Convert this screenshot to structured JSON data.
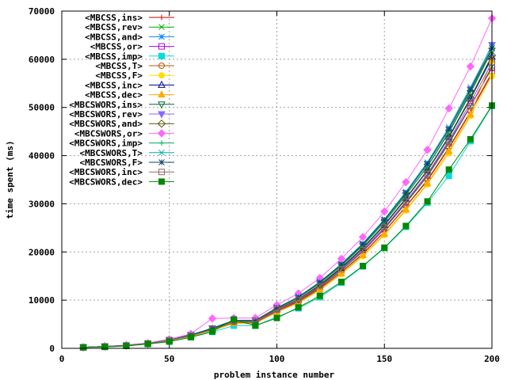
{
  "chart_data": {
    "type": "line",
    "title": "",
    "xlabel": "problem instance number",
    "ylabel": "time spent (ms)",
    "xlim": [
      0,
      200
    ],
    "ylim": [
      0,
      70000
    ],
    "xticks": [
      0,
      50,
      100,
      150,
      200
    ],
    "yticks": [
      0,
      10000,
      20000,
      30000,
      40000,
      50000,
      60000,
      70000
    ],
    "grid": true,
    "legend_position": "top-left",
    "x": [
      10,
      20,
      30,
      40,
      50,
      60,
      70,
      80,
      90,
      100,
      110,
      120,
      130,
      140,
      150,
      160,
      170,
      180,
      190,
      200
    ],
    "series": [
      {
        "name": "<MBCSS,ins>",
        "color": "#cc0000",
        "marker": "plus",
        "values": [
          200,
          400,
          600,
          1000,
          1700,
          2600,
          3800,
          5400,
          5300,
          7700,
          9600,
          12400,
          15800,
          19600,
          24200,
          29400,
          34800,
          41500,
          49000,
          57000
        ]
      },
      {
        "name": "<MBCSS,rev>",
        "color": "#00aa00",
        "marker": "x",
        "values": [
          200,
          400,
          600,
          1000,
          1700,
          2600,
          3900,
          5500,
          5400,
          7800,
          9800,
          12700,
          16200,
          20100,
          24800,
          30100,
          35700,
          42500,
          50200,
          58500
        ]
      },
      {
        "name": "<MBCSS,and>",
        "color": "#0088ff",
        "marker": "star",
        "values": [
          200,
          400,
          600,
          1000,
          1700,
          2700,
          4000,
          5500,
          5500,
          8000,
          10100,
          13000,
          16600,
          20700,
          25500,
          31000,
          36800,
          43700,
          51800,
          60200
        ]
      },
      {
        "name": "<MBCSS,or>",
        "color": "#aa00ff",
        "marker": "square-open",
        "values": [
          200,
          400,
          600,
          1000,
          1700,
          2600,
          3900,
          5400,
          5400,
          7900,
          9900,
          12800,
          16300,
          20200,
          24900,
          30300,
          35900,
          42800,
          50300,
          58200
        ]
      },
      {
        "name": "<MBCSS,imp>",
        "color": "#00dddd",
        "marker": "square",
        "values": [
          200,
          300,
          500,
          900,
          1400,
          2300,
          3400,
          4700,
          4700,
          6500,
          8300,
          10600,
          13600,
          17000,
          20800,
          25200,
          30200,
          35800,
          43000,
          50300
        ]
      },
      {
        "name": "<MBCSS,T>",
        "color": "#bb5500",
        "marker": "circle-open",
        "values": [
          200,
          400,
          600,
          1000,
          1700,
          2600,
          3800,
          5400,
          5300,
          7700,
          9700,
          12500,
          15900,
          19700,
          24300,
          29500,
          35000,
          41700,
          49200,
          57300
        ]
      },
      {
        "name": "<MBCSS,F>",
        "color": "#ffdd00",
        "marker": "circle",
        "values": [
          200,
          400,
          600,
          1000,
          1600,
          2500,
          3700,
          5200,
          5200,
          7500,
          9400,
          12100,
          15400,
          19100,
          23500,
          28600,
          34000,
          40500,
          48200,
          56500
        ]
      },
      {
        "name": "<MBCSS,inc>",
        "color": "#000099",
        "marker": "triangle-open",
        "values": [
          200,
          400,
          600,
          1000,
          1700,
          2700,
          4000,
          5600,
          5600,
          8100,
          10200,
          13100,
          16700,
          20800,
          25600,
          31100,
          36900,
          43900,
          51800,
          60500
        ]
      },
      {
        "name": "<MBCSS,dec>",
        "color": "#ffaa00",
        "marker": "triangle",
        "values": [
          200,
          400,
          600,
          1000,
          1600,
          2500,
          3700,
          5200,
          5200,
          7500,
          9500,
          12200,
          15500,
          19300,
          23700,
          28800,
          34200,
          40900,
          48500,
          59800
        ]
      },
      {
        "name": "<MBCSWORS,ins>",
        "color": "#006633",
        "marker": "triangle-down-open",
        "values": [
          200,
          400,
          600,
          1000,
          1700,
          2700,
          4100,
          5700,
          5700,
          8300,
          10500,
          13500,
          17100,
          21300,
          26200,
          31800,
          37700,
          44800,
          53000,
          61800
        ]
      },
      {
        "name": "<MBCSWORS,rev>",
        "color": "#8866ff",
        "marker": "triangle-down",
        "values": [
          200,
          400,
          600,
          1000,
          1800,
          2800,
          4200,
          5800,
          5800,
          8400,
          10600,
          13700,
          17400,
          21600,
          26600,
          32300,
          38300,
          45500,
          53800,
          63000
        ]
      },
      {
        "name": "<MBCSWORS,and>",
        "color": "#555500",
        "marker": "diamond-open",
        "values": [
          200,
          400,
          600,
          1000,
          1700,
          2700,
          4000,
          5600,
          5600,
          8100,
          10200,
          13200,
          16800,
          20900,
          25700,
          31200,
          37000,
          44000,
          52000,
          60800
        ]
      },
      {
        "name": "<MBCSWORS,or>",
        "color": "#ff66ff",
        "marker": "diamond",
        "values": [
          200,
          400,
          700,
          1100,
          1900,
          3000,
          6200,
          6300,
          6300,
          9000,
          11400,
          14600,
          18600,
          23100,
          28400,
          34500,
          41200,
          49800,
          58500,
          68500
        ]
      },
      {
        "name": "<MBCSWORS,imp>",
        "color": "#00aa66",
        "marker": "plus",
        "values": [
          200,
          400,
          600,
          1000,
          1700,
          2700,
          4100,
          5700,
          5700,
          8300,
          10500,
          13500,
          17200,
          21400,
          26300,
          31900,
          37800,
          45000,
          53300,
          62000
        ]
      },
      {
        "name": "<MBCSWORS,T>",
        "color": "#00aaaa",
        "marker": "x",
        "values": [
          200,
          400,
          600,
          1000,
          1700,
          2800,
          4200,
          5800,
          5800,
          8400,
          10700,
          13800,
          17500,
          21800,
          26800,
          32500,
          38600,
          45900,
          54200,
          62800
        ]
      },
      {
        "name": "<MBCSWORS,F>",
        "color": "#114466",
        "marker": "star",
        "values": [
          200,
          400,
          600,
          1000,
          1700,
          2800,
          4100,
          5800,
          5800,
          8400,
          10600,
          13700,
          17400,
          21600,
          26600,
          32200,
          38300,
          45500,
          53700,
          62300
        ]
      },
      {
        "name": "<MBCSWORS,inc>",
        "color": "#996666",
        "marker": "square-open",
        "values": [
          200,
          400,
          600,
          1000,
          1700,
          2600,
          3900,
          5500,
          5500,
          8000,
          10000,
          12900,
          16400,
          20400,
          25100,
          30500,
          36200,
          43100,
          51000,
          59300
        ]
      },
      {
        "name": "<MBCSWORS,dec>",
        "color": "#008800",
        "marker": "square",
        "values": [
          200,
          300,
          500,
          900,
          1400,
          2300,
          3500,
          6000,
          4700,
          6300,
          8500,
          10900,
          13800,
          17100,
          20900,
          25400,
          30500,
          37100,
          43400,
          50400
        ]
      }
    ]
  }
}
